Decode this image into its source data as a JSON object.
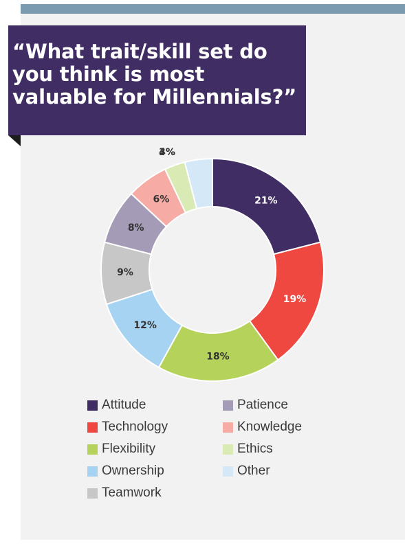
{
  "title": "“What trait/skill set do you think is most valuable for Millennials?”",
  "colors": {
    "banner": "#3f2d63",
    "top_bar": "#7b9bb0",
    "panel": "#f2f2f2"
  },
  "chart_data": {
    "type": "pie",
    "donut": true,
    "title": "",
    "slices": [
      {
        "label": "Attitude",
        "value": 21,
        "display": "21%",
        "color": "#3f2d63",
        "label_color": "#ffffff"
      },
      {
        "label": "Technology",
        "value": 19,
        "display": "19%",
        "color": "#ee4840",
        "label_color": "#ffffff"
      },
      {
        "label": "Flexibility",
        "value": 18,
        "display": "18%",
        "color": "#b5d25b",
        "label_color": "#333333"
      },
      {
        "label": "Ownership",
        "value": 12,
        "display": "12%",
        "color": "#a6d3f2",
        "label_color": "#333333"
      },
      {
        "label": "Teamwork",
        "value": 9,
        "display": "9%",
        "color": "#c7c7c7",
        "label_color": "#333333"
      },
      {
        "label": "Patience",
        "value": 8,
        "display": "8%",
        "color": "#a49bb6",
        "label_color": "#333333"
      },
      {
        "label": "Knowledge",
        "value": 6,
        "display": "6%",
        "color": "#f6aba5",
        "label_color": "#333333"
      },
      {
        "label": "Ethics",
        "value": 3,
        "display": "3%",
        "color": "#daeab5",
        "label_color": "#333333"
      },
      {
        "label": "Other",
        "value": 4,
        "display": "4%",
        "color": "#d4e8f8",
        "label_color": "#333333"
      }
    ],
    "legend": {
      "placement": "bottom",
      "columns": [
        [
          "Attitude",
          "Technology",
          "Flexibility",
          "Ownership",
          "Teamwork"
        ],
        [
          "Patience",
          "Knowledge",
          "Ethics",
          "Other"
        ]
      ]
    }
  }
}
